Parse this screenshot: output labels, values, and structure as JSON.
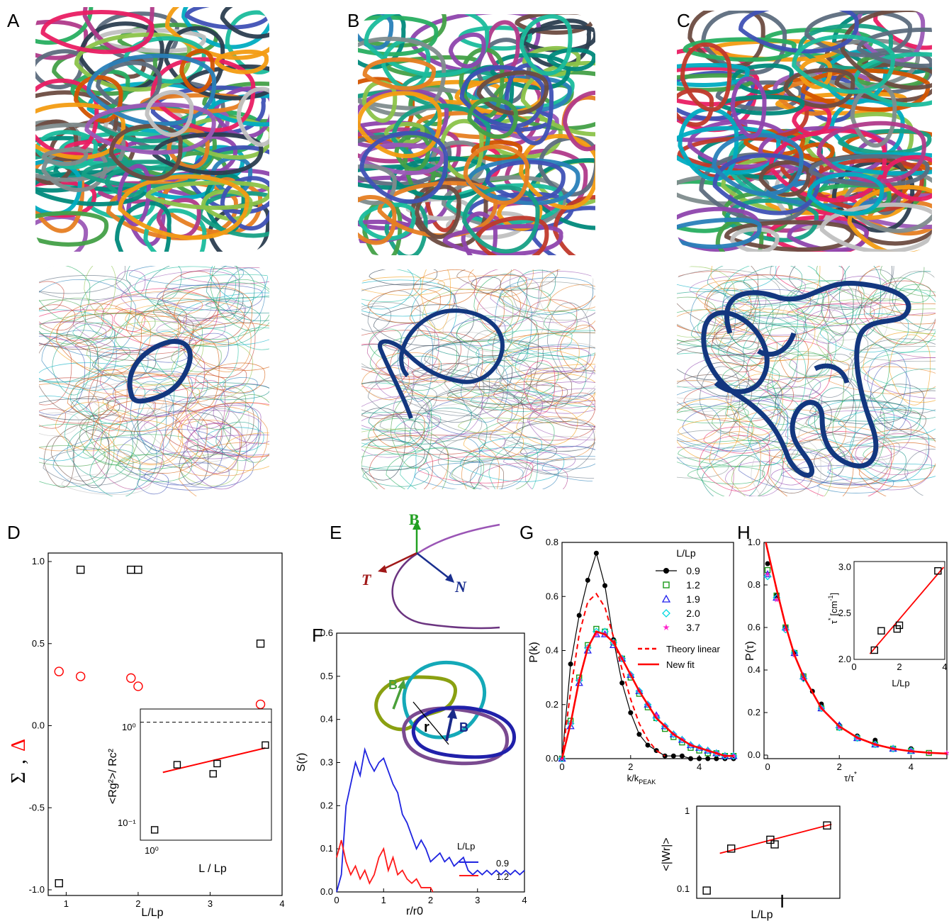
{
  "panel_letters": [
    "A",
    "B",
    "C",
    "D",
    "E",
    "F",
    "G",
    "H",
    "I"
  ],
  "frame_a": {
    "hue_seed": 3
  },
  "frame_b": {
    "hue_seed": 11
  },
  "frame_c": {
    "hue_seed": 23
  },
  "panel_e": {
    "b_label": "B",
    "t_label": "T",
    "n_label": "N",
    "colors": {
      "B": "#22a022",
      "T": "#a01818",
      "N": "#1a2f8f"
    }
  },
  "chart_data": [
    {
      "panel": "D",
      "type": "scatter",
      "xlabel": "L/Lp",
      "ylabel_sigma": "Σ",
      "ylabel_sep": ",",
      "ylabel_delta": "Δ",
      "xlim": [
        0.75,
        4.0
      ],
      "ylim": [
        -1.0,
        1.0
      ],
      "xticks": [
        1,
        2,
        3,
        4
      ],
      "yticks": [
        -1.0,
        -0.5,
        0.0,
        0.5,
        1.0
      ],
      "ytick_labels": [
        "-1.0",
        "-0.5",
        "0.0",
        "0.5",
        "1.0"
      ],
      "series": [
        {
          "marker": "square",
          "color": "#000000",
          "x": [
            0.9,
            1.2,
            1.9,
            2.0,
            3.7
          ],
          "y": [
            -0.96,
            0.95,
            0.95,
            0.95,
            0.5
          ]
        },
        {
          "marker": "circle",
          "color": "#ff0000",
          "x": [
            0.9,
            1.2,
            1.9,
            2.0,
            3.7
          ],
          "y": [
            0.33,
            0.3,
            0.29,
            0.24,
            0.13
          ]
        }
      ],
      "inset": {
        "ylabel": "<Rg²>/ Rc²",
        "xlabel": "L / Lp",
        "xtick_labels": [
          "10⁰"
        ],
        "ytick_labels": [
          "10⁰",
          "10⁻¹"
        ],
        "points": [
          {
            "x": 0.9,
            "y": 0.065
          },
          {
            "x": 1.2,
            "y": 0.34
          },
          {
            "x": 1.9,
            "y": 0.27
          },
          {
            "x": 2.0,
            "y": 0.35
          },
          {
            "x": 3.7,
            "y": 0.56
          }
        ],
        "fit": [
          {
            "x": 1.0,
            "y": 0.28
          },
          {
            "x": 3.7,
            "y": 0.52
          }
        ],
        "ref_line": 1.0
      }
    },
    {
      "panel": "F",
      "type": "line",
      "xlabel": "r/r0",
      "ylabel": "S(r)",
      "xlim": [
        0,
        4
      ],
      "ylim": [
        0,
        0.6
      ],
      "xticks": [
        0,
        1,
        2,
        3,
        4
      ],
      "yticks": [
        0.0,
        0.1,
        0.2,
        0.3,
        0.4,
        0.5,
        0.6
      ],
      "ytick_labels": [
        "0.0",
        "0.1",
        "0.2",
        "0.3",
        "0.4",
        "0.5",
        "0.6"
      ],
      "legend_title": "L/Lp",
      "series": [
        {
          "name": "0.9",
          "color": "#1f24e0",
          "x": [
            0,
            0.1,
            0.2,
            0.3,
            0.4,
            0.5,
            0.6,
            0.7,
            0.8,
            0.9,
            1.0,
            1.1,
            1.2,
            1.3,
            1.4,
            1.5,
            1.6,
            1.7,
            1.8,
            1.9,
            2.0,
            2.1,
            2.2,
            2.3,
            2.4,
            2.5,
            2.6,
            2.7,
            2.8,
            2.9,
            3.0,
            3.1,
            3.2,
            3.3,
            3.4,
            3.5,
            3.6,
            3.7,
            3.8,
            3.9,
            4.0
          ],
          "y": [
            0,
            0.04,
            0.2,
            0.25,
            0.3,
            0.27,
            0.33,
            0.3,
            0.28,
            0.3,
            0.31,
            0.28,
            0.25,
            0.23,
            0.18,
            0.16,
            0.13,
            0.1,
            0.12,
            0.1,
            0.07,
            0.08,
            0.09,
            0.07,
            0.08,
            0.06,
            0.07,
            0.08,
            0.05,
            0.04,
            0.05,
            0.04,
            0.05,
            0.04,
            0.05,
            0.04,
            0.05,
            0.04,
            0.05,
            0.04,
            0.05
          ]
        },
        {
          "name": "1.2",
          "color": "#ff1a1a",
          "x": [
            0,
            0.1,
            0.2,
            0.3,
            0.4,
            0.5,
            0.6,
            0.7,
            0.8,
            0.9,
            1.0,
            1.1,
            1.2,
            1.3,
            1.4,
            1.5,
            1.6,
            1.7,
            1.8,
            1.9,
            2.0,
            2.05
          ],
          "y": [
            0.08,
            0.12,
            0.07,
            0.04,
            0.06,
            0.03,
            0.05,
            0.02,
            0.04,
            0.08,
            0.1,
            0.05,
            0.08,
            0.04,
            0.05,
            0.03,
            0.02,
            0.03,
            0.01,
            0.01,
            0.01,
            0.0
          ]
        }
      ],
      "inset_labels": {
        "b_outer": "B",
        "b_inner": "B",
        "r": "r"
      }
    },
    {
      "panel": "G",
      "type": "line",
      "xlabel": "k/kPEAK",
      "xlabel_main": "k/k",
      "xlabel_sub": "PEAK",
      "ylabel": "P(k)",
      "xlim": [
        0,
        5
      ],
      "ylim": [
        0,
        0.8
      ],
      "xticks": [
        0,
        2,
        4
      ],
      "yticks": [
        0.0,
        0.2,
        0.4,
        0.6,
        0.8
      ],
      "ytick_labels": [
        "0.0",
        "0.2",
        "0.4",
        "0.6",
        "0.8"
      ],
      "legend_title": "L/Lp",
      "series": [
        {
          "name": "0.9",
          "color": "#000000",
          "marker": "dot",
          "x": [
            0,
            0.25,
            0.5,
            0.75,
            1.0,
            1.25,
            1.5,
            1.75,
            2.0,
            2.25,
            2.5,
            2.75,
            3.0,
            3.25,
            3.5,
            3.75,
            4.0,
            4.25,
            4.5,
            4.75,
            5.0
          ],
          "y": [
            0,
            0.35,
            0.53,
            0.66,
            0.76,
            0.64,
            0.44,
            0.28,
            0.17,
            0.09,
            0.05,
            0.03,
            0.01,
            0.01,
            0.01,
            0.0,
            0.0,
            0.0,
            0.0,
            0.0,
            0.0
          ]
        },
        {
          "name": "1.2",
          "color": "#1a9a1a",
          "marker": "square",
          "x": [
            0,
            0.25,
            0.5,
            0.75,
            1.0,
            1.25,
            1.5,
            1.75,
            2.0,
            2.25,
            2.5,
            2.75,
            3.0,
            3.25,
            3.5,
            3.75,
            4.0,
            4.25,
            4.5,
            4.75,
            5.0
          ],
          "y": [
            0,
            0.14,
            0.3,
            0.42,
            0.48,
            0.47,
            0.43,
            0.37,
            0.3,
            0.24,
            0.19,
            0.15,
            0.11,
            0.08,
            0.06,
            0.04,
            0.03,
            0.02,
            0.02,
            0.01,
            0.01
          ]
        },
        {
          "name": "1.9",
          "color": "#2222ee",
          "marker": "triangle",
          "x": [
            0,
            0.25,
            0.5,
            0.75,
            1.0,
            1.25,
            1.5,
            1.75,
            2.0,
            2.25,
            2.5,
            2.75,
            3.0,
            3.25,
            3.5,
            3.75,
            4.0,
            4.25,
            4.5,
            4.75,
            5.0
          ],
          "y": [
            0,
            0.12,
            0.28,
            0.4,
            0.46,
            0.46,
            0.42,
            0.37,
            0.31,
            0.25,
            0.2,
            0.16,
            0.12,
            0.09,
            0.07,
            0.05,
            0.04,
            0.03,
            0.02,
            0.01,
            0.01
          ]
        },
        {
          "name": "2.0",
          "color": "#00d8e0",
          "marker": "diamond",
          "x": [
            0,
            0.25,
            0.5,
            0.75,
            1.0,
            1.25,
            1.5,
            1.75,
            2.0,
            2.25,
            2.5,
            2.75,
            3.0,
            3.25,
            3.5,
            3.75,
            4.0,
            4.25,
            4.5,
            4.75,
            5.0
          ],
          "y": [
            0,
            0.13,
            0.29,
            0.41,
            0.47,
            0.47,
            0.43,
            0.37,
            0.31,
            0.25,
            0.2,
            0.15,
            0.12,
            0.09,
            0.07,
            0.05,
            0.04,
            0.03,
            0.02,
            0.01,
            0.01
          ]
        },
        {
          "name": "3.7",
          "color": "#ff22cc",
          "marker": "star",
          "x": [
            0,
            0.25,
            0.5,
            0.75,
            1.0,
            1.25,
            1.5,
            1.75,
            2.0,
            2.25,
            2.5,
            2.75,
            3.0,
            3.25,
            3.5,
            3.75,
            4.0,
            4.25,
            4.5,
            4.75,
            5.0
          ],
          "y": [
            0,
            0.13,
            0.29,
            0.41,
            0.46,
            0.46,
            0.43,
            0.37,
            0.31,
            0.25,
            0.2,
            0.16,
            0.12,
            0.09,
            0.07,
            0.05,
            0.04,
            0.03,
            0.02,
            0.01,
            0.01
          ]
        },
        {
          "name": "Theory linear",
          "color": "#ff0000",
          "style": "dashed",
          "x": [
            0,
            0.25,
            0.5,
            0.75,
            1.0,
            1.25,
            1.5,
            1.75,
            2.0,
            2.25,
            2.5,
            2.75,
            3.0
          ],
          "y": [
            0,
            0.25,
            0.46,
            0.58,
            0.61,
            0.56,
            0.45,
            0.33,
            0.22,
            0.13,
            0.07,
            0.03,
            0.01
          ]
        },
        {
          "name": "New fit",
          "color": "#ff0000",
          "style": "solid",
          "x": [
            0,
            0.25,
            0.5,
            0.75,
            1.0,
            1.25,
            1.5,
            1.75,
            2.0,
            2.25,
            2.5,
            2.75,
            3.0,
            3.25,
            3.5,
            3.75,
            4.0,
            4.25,
            4.5,
            4.75,
            5.0
          ],
          "y": [
            0,
            0.13,
            0.29,
            0.41,
            0.47,
            0.46,
            0.43,
            0.37,
            0.31,
            0.25,
            0.2,
            0.15,
            0.12,
            0.09,
            0.07,
            0.05,
            0.04,
            0.03,
            0.02,
            0.01,
            0.01
          ]
        }
      ]
    },
    {
      "panel": "H",
      "type": "line",
      "xlabel": "τ/τ*",
      "xlabel_main": "τ/τ",
      "xlabel_sup": "*",
      "ylabel": "P(τ)",
      "xlim": [
        -0.1,
        5
      ],
      "ylim": [
        0,
        1.0
      ],
      "xticks": [
        0,
        2,
        4
      ],
      "yticks": [
        0.0,
        0.2,
        0.4,
        0.6,
        0.8,
        1.0
      ],
      "ytick_labels": [
        "0.0",
        "0.2",
        "0.4",
        "0.6",
        "0.8",
        "1.0"
      ],
      "series": [
        {
          "name": "0.9",
          "color": "#000000",
          "x": [
            0,
            0.25,
            0.5,
            0.75,
            1.0,
            1.25,
            1.5,
            2.0,
            2.5,
            3.0,
            4.0
          ],
          "y": [
            0.9,
            0.75,
            0.6,
            0.48,
            0.36,
            0.3,
            0.24,
            0.14,
            0.09,
            0.07,
            0.03
          ]
        },
        {
          "name": "1.2",
          "color": "#1a9a1a",
          "x": [
            0,
            0.25,
            0.5,
            0.75,
            1.0,
            1.5,
            2.0,
            2.5,
            3.0,
            3.5,
            4.0,
            4.5
          ],
          "y": [
            0.87,
            0.75,
            0.6,
            0.48,
            0.37,
            0.22,
            0.13,
            0.08,
            0.05,
            0.03,
            0.02,
            0.01
          ]
        },
        {
          "name": "1.9",
          "color": "#2222ee",
          "x": [
            0,
            0.25,
            0.5,
            0.75,
            1.0,
            1.5,
            2.0,
            2.5,
            3.0,
            3.5,
            4.0
          ],
          "y": [
            0.85,
            0.74,
            0.6,
            0.48,
            0.37,
            0.22,
            0.14,
            0.08,
            0.05,
            0.03,
            0.02
          ]
        },
        {
          "name": "2.0",
          "color": "#00d8e0",
          "x": [
            0,
            0.25,
            0.5,
            0.75,
            1.0,
            1.5,
            2.0,
            2.5,
            3.0,
            3.5,
            4.0
          ],
          "y": [
            0.84,
            0.74,
            0.59,
            0.48,
            0.36,
            0.22,
            0.13,
            0.08,
            0.05,
            0.03,
            0.02
          ]
        },
        {
          "name": "3.7",
          "color": "#ff22cc",
          "x": [
            0,
            0.25,
            0.5,
            0.75,
            1.0,
            1.5,
            2.0,
            2.5,
            3.0,
            3.5,
            4.0,
            4.5,
            5.0
          ],
          "y": [
            0.85,
            0.73,
            0.59,
            0.47,
            0.36,
            0.22,
            0.13,
            0.08,
            0.05,
            0.03,
            0.02,
            0.01,
            0.01
          ]
        },
        {
          "name": "fit",
          "color": "#ff0000",
          "x": [
            -0.05,
            0.25,
            0.5,
            0.75,
            1.0,
            1.5,
            2.0,
            2.5,
            3.0,
            3.5,
            4.0,
            4.5,
            5.0
          ],
          "y": [
            1.0,
            0.78,
            0.61,
            0.47,
            0.37,
            0.22,
            0.135,
            0.082,
            0.05,
            0.03,
            0.018,
            0.011,
            0.007
          ]
        }
      ],
      "inset": {
        "ylabel": "τ* [cm⁻¹]",
        "ylabel_main": "τ",
        "ylabel_sup": "*",
        "ylabel_unit": "[cm",
        "ylabel_unit_sup": "-1",
        "ylabel_close": "]",
        "xlabel": "L/Lp",
        "xlim": [
          0,
          4
        ],
        "ylim": [
          2.0,
          3.0
        ],
        "xticks": [
          0,
          2,
          4
        ],
        "yticks": [
          2.0,
          2.5,
          3.0
        ],
        "ytick_labels": [
          "2.0",
          "2.5",
          "3.0"
        ],
        "points": [
          {
            "x": 0.9,
            "y": 2.1
          },
          {
            "x": 1.2,
            "y": 2.31
          },
          {
            "x": 1.9,
            "y": 2.33
          },
          {
            "x": 2.0,
            "y": 2.37
          },
          {
            "x": 3.7,
            "y": 2.96
          }
        ],
        "fit": [
          {
            "x": 0.7,
            "y": 2.06
          },
          {
            "x": 3.95,
            "y": 3.0
          }
        ]
      }
    },
    {
      "panel": "I",
      "type": "scatter",
      "xlabel": "L/Lp",
      "ylabel": "<|Wr|>",
      "ytick_labels": [
        "1",
        "0.1"
      ],
      "points": [
        {
          "x": 0.9,
          "y": 0.105
        },
        {
          "x": 1.2,
          "y": 0.33
        },
        {
          "x": 1.9,
          "y": 0.42
        },
        {
          "x": 2.0,
          "y": 0.37
        },
        {
          "x": 3.7,
          "y": 0.62
        }
      ],
      "fit": [
        {
          "x": 1.05,
          "y": 0.29
        },
        {
          "x": 3.9,
          "y": 0.64
        }
      ]
    }
  ]
}
